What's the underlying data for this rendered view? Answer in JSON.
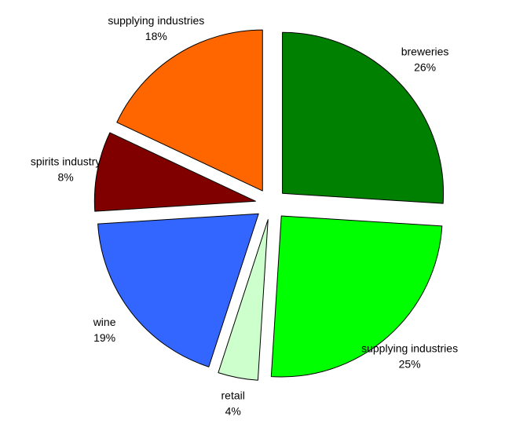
{
  "chart_data": {
    "type": "pie",
    "title": "",
    "exploded": true,
    "start_angle_deg": 0,
    "direction": "clockwise",
    "slices": [
      {
        "label": "breweries",
        "value": 26,
        "value_label": "26%",
        "color": "#008000"
      },
      {
        "label": "supplying industries",
        "value": 25,
        "value_label": "25%",
        "color": "#00FF00"
      },
      {
        "label": "retail",
        "value": 4,
        "value_label": "4%",
        "color": "#CCFFCC"
      },
      {
        "label": "wine",
        "value": 19,
        "value_label": "19%",
        "color": "#3366FF"
      },
      {
        "label": "spirits industry",
        "value": 8,
        "value_label": "8%",
        "color": "#800000"
      },
      {
        "label": "supplying industries",
        "value": 18,
        "value_label": "18%",
        "color": "#FF6600"
      }
    ]
  }
}
